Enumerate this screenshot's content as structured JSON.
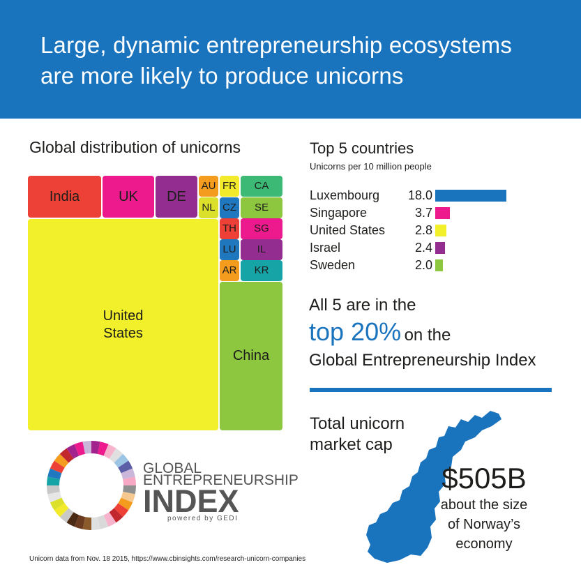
{
  "banner": {
    "line1": "Large, dynamic entrepreneurship ecosystems",
    "line2": "are more likely to produce unicorns"
  },
  "treemap": {
    "title": "Global distribution of unicorns"
  },
  "top5": {
    "title": "Top 5 countries",
    "subtitle": "Unicorns per 10 million people"
  },
  "chart_data": [
    {
      "type": "treemap",
      "title": "Global distribution of unicorns",
      "tiles": [
        {
          "label": "India",
          "color": "#ed4036"
        },
        {
          "label": "UK",
          "color": "#ec1a8c"
        },
        {
          "label": "DE",
          "color": "#932d8f"
        },
        {
          "label": "AU",
          "color": "#f39c1e"
        },
        {
          "label": "FR",
          "color": "#f2ea2a"
        },
        {
          "label": "CA",
          "color": "#3cba75"
        },
        {
          "label": "NL",
          "color": "#dbe02a"
        },
        {
          "label": "CZ",
          "color": "#2079c0"
        },
        {
          "label": "SE",
          "color": "#8dc63f"
        },
        {
          "label": "TH",
          "color": "#ed4036"
        },
        {
          "label": "SG",
          "color": "#ec1a8c"
        },
        {
          "label": "LU",
          "color": "#1f78be"
        },
        {
          "label": "IL",
          "color": "#932d8f"
        },
        {
          "label": "AR",
          "color": "#f39c1e"
        },
        {
          "label": "KR",
          "color": "#17a4a7"
        },
        {
          "label": "United\nStates",
          "color": "#f2ef2b"
        },
        {
          "label": "China",
          "color": "#8dc63f"
        }
      ]
    },
    {
      "type": "bar",
      "orientation": "horizontal",
      "title": "Top 5 countries",
      "subtitle": "Unicorns per 10 million people",
      "categories": [
        "Luxembourg",
        "Singapore",
        "United States",
        "Israel",
        "Sweden"
      ],
      "values": [
        18.0,
        3.7,
        2.8,
        2.4,
        2.0
      ],
      "value_labels": [
        "18.0",
        "3.7",
        "2.8",
        "2.4",
        "2.0"
      ],
      "colors": [
        "#1a73bd",
        "#ec1a8c",
        "#f2ef2b",
        "#932d8f",
        "#8dc63f"
      ]
    }
  ],
  "callout": {
    "line1": "All 5 are in the",
    "highlight": "top 20%",
    "line2_rest": "on the",
    "line3": "Global Entrepreneurship Index"
  },
  "market_cap": {
    "line1": "Total unicorn",
    "line2": "market cap",
    "amount": "$505B",
    "about1": "about the size",
    "about2": "of Norway’s",
    "about3": "economy",
    "map_color": "#1a73bd"
  },
  "logo": {
    "line1": "GLOBAL",
    "line2": "ENTREPRENEURSHIP",
    "line3": "INDEX",
    "line4": "powered by GEDI"
  },
  "footnote": "Unicorn data from Nov. 18 2015, https://www.cbinsights.com/research-unicorn-companies",
  "colors": {
    "brand_blue": "#1a73bd"
  }
}
